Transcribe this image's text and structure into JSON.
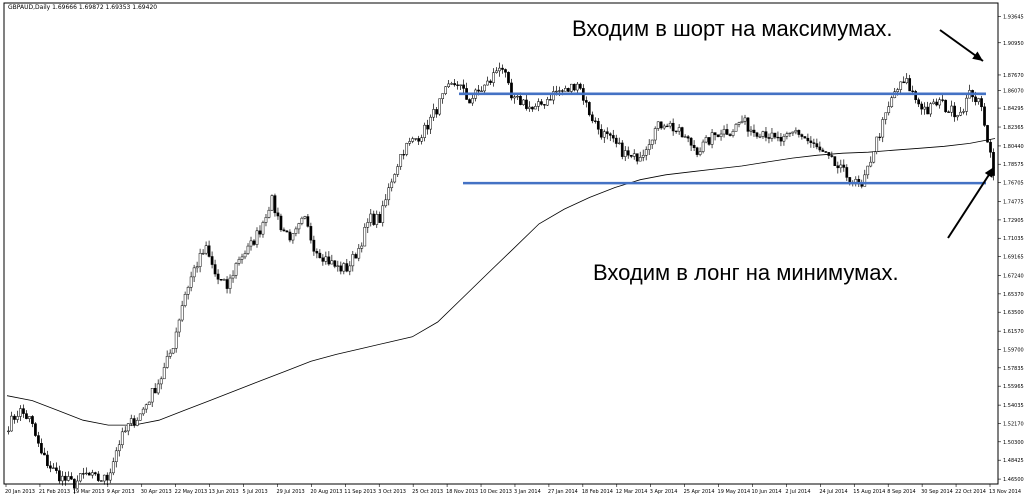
{
  "chart_data": {
    "type": "candlestick",
    "title": "GBPAUD,Daily  1.69666 1.69872 1.69353 1.69420",
    "x_ticks": [
      "20 Jan 2013",
      "21 Feb 2013",
      "19 Mar 2013",
      "9 Apr 2013",
      "30 Apr 2013",
      "22 May 2013",
      "13 Jun 2013",
      "5 Jul 2013",
      "29 Jul 2013",
      "20 Aug 2013",
      "11 Sep 2013",
      "3 Oct 2013",
      "25 Oct 2013",
      "18 Nov 2013",
      "10 Dec 2013",
      "3 Jan 2014",
      "27 Jan 2014",
      "18 Feb 2014",
      "12 Mar 2014",
      "3 Apr 2014",
      "25 Apr 2014",
      "19 May 2014",
      "10 Jun 2014",
      "2 Jul 2014",
      "24 Jul 2014",
      "15 Aug 2014",
      "8 Sep 2014",
      "30 Sep 2014",
      "22 Oct 2014",
      "13 Nov 2014"
    ],
    "y_ticks": [
      "1.93645",
      "1.90950",
      "1.87670",
      "1.86070",
      "1.84295",
      "1.82365",
      "1.80440",
      "1.78575",
      "1.76705",
      "1.74775",
      "1.72905",
      "1.71035",
      "1.69165",
      "1.67240",
      "1.65370",
      "1.63500",
      "1.61570",
      "1.59700",
      "1.57835",
      "1.55965",
      "1.54035",
      "1.52170",
      "1.50300",
      "1.48425",
      "1.46500"
    ],
    "ylim": [
      1.46,
      1.95
    ],
    "price_path": [
      1.52,
      1.535,
      1.525,
      1.49,
      1.475,
      1.465,
      1.46,
      1.47,
      1.465,
      1.465,
      1.5,
      1.52,
      1.53,
      1.55,
      1.57,
      1.6,
      1.65,
      1.68,
      1.7,
      1.67,
      1.66,
      1.69,
      1.7,
      1.72,
      1.75,
      1.72,
      1.71,
      1.73,
      1.7,
      1.69,
      1.68,
      1.68,
      1.7,
      1.73,
      1.73,
      1.77,
      1.8,
      1.81,
      1.82,
      1.84,
      1.86,
      1.87,
      1.85,
      1.86,
      1.87,
      1.89,
      1.85,
      1.85,
      1.84,
      1.85,
      1.86,
      1.86,
      1.87,
      1.84,
      1.82,
      1.81,
      1.8,
      1.79,
      1.8,
      1.82,
      1.83,
      1.82,
      1.81,
      1.8,
      1.81,
      1.82,
      1.82,
      1.83,
      1.82,
      1.82,
      1.81,
      1.81,
      1.82,
      1.81,
      1.8,
      1.79,
      1.78,
      1.77,
      1.76,
      1.8,
      1.83,
      1.86,
      1.87,
      1.85,
      1.84,
      1.85,
      1.84,
      1.84,
      1.86,
      1.84,
      1.78
    ],
    "moving_average": [
      1.55,
      1.545,
      1.535,
      1.525,
      1.52,
      1.52,
      1.525,
      1.535,
      1.545,
      1.555,
      1.565,
      1.575,
      1.585,
      1.592,
      1.598,
      1.604,
      1.61,
      1.625,
      1.65,
      1.675,
      1.7,
      1.725,
      1.74,
      1.752,
      1.762,
      1.77,
      1.775,
      1.778,
      1.781,
      1.784,
      1.788,
      1.792,
      1.795,
      1.797,
      1.798,
      1.8,
      1.802,
      1.804,
      1.807,
      1.812
    ],
    "resistance_level": 1.8575,
    "support_level": 1.7665,
    "annotations": {
      "short": "Входим в шорт на максимумах.",
      "long": "Входим в лонг на минимумах."
    },
    "colors": {
      "candle": "#000000",
      "level_line": "#4472c4",
      "moving_average": "#000000"
    }
  }
}
